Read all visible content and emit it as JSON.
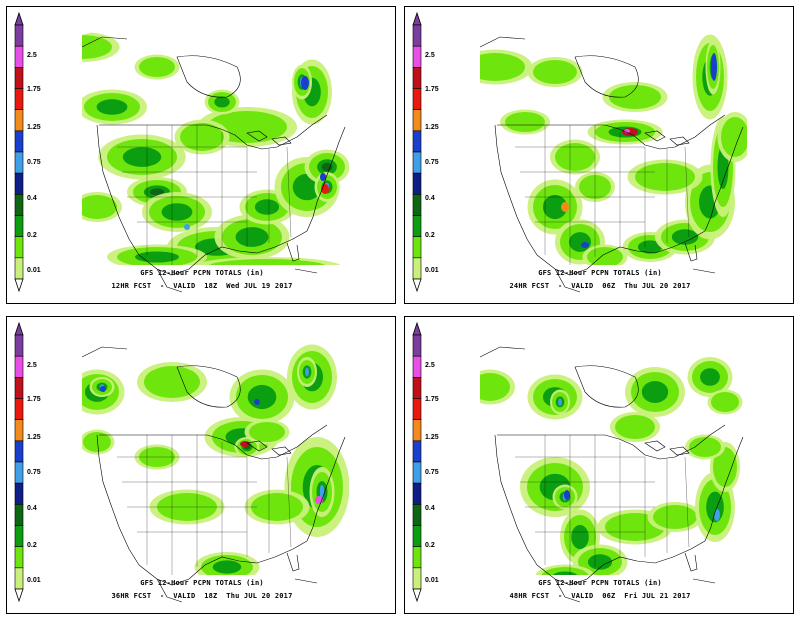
{
  "colorbar": {
    "levels": [
      "2.5",
      "1.75",
      "1.25",
      "0.75",
      "0.4",
      "0.2",
      "0.01"
    ],
    "colors": [
      "#7b3d9e",
      "#e84fe6",
      "#c0101a",
      "#e8190f",
      "#f28a1c",
      "#1a3fce",
      "#3f9fe8",
      "#101f88",
      "#0e6614",
      "#0b9e10",
      "#6ee60e",
      "#c8f07a"
    ]
  },
  "panels": [
    {
      "title": "GFS 12-Hour PCPN TOTALS (in)",
      "subtitle": "12HR FCST  -  VALID  18Z  Wed JUL 19 2017"
    },
    {
      "title": "GFS 12-Hour PCPN TOTALS (in)",
      "subtitle": "24HR FCST  -  VALID  06Z  Thu JUL 20 2017"
    },
    {
      "title": "GFS 12-Hour PCPN TOTALS (in)",
      "subtitle": "36HR FCST  -  VALID  18Z  Thu JUL 20 2017"
    },
    {
      "title": "GFS 12-Hour PCPN TOTALS (in)",
      "subtitle": "48HR FCST  -  VALID  06Z  Fri JUL 21 2017"
    }
  ]
}
